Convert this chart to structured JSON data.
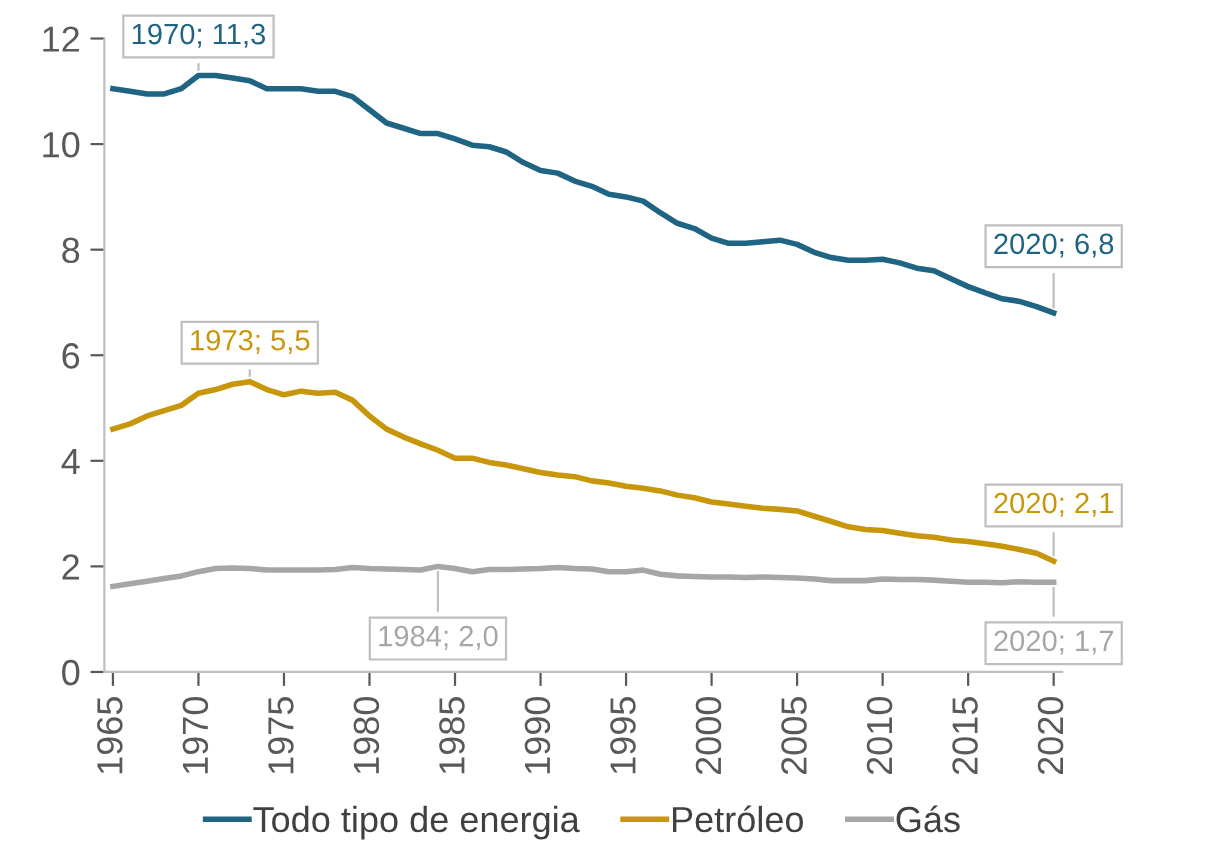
{
  "chart_data": {
    "type": "line",
    "x": [
      1965,
      1966,
      1967,
      1968,
      1969,
      1970,
      1971,
      1972,
      1973,
      1974,
      1975,
      1976,
      1977,
      1978,
      1979,
      1980,
      1981,
      1982,
      1983,
      1984,
      1985,
      1986,
      1987,
      1988,
      1989,
      1990,
      1991,
      1992,
      1993,
      1994,
      1995,
      1996,
      1997,
      1998,
      1999,
      2000,
      2001,
      2002,
      2003,
      2004,
      2005,
      2006,
      2007,
      2008,
      2009,
      2010,
      2011,
      2012,
      2013,
      2014,
      2015,
      2016,
      2017,
      2018,
      2019,
      2020
    ],
    "series": [
      {
        "name": "Todo tipo de energia",
        "color": "#1f6482",
        "values": [
          11.05,
          11.0,
          10.95,
          10.95,
          11.05,
          11.3,
          11.3,
          11.25,
          11.2,
          11.05,
          11.05,
          11.05,
          11.0,
          11.0,
          10.9,
          10.65,
          10.4,
          10.3,
          10.2,
          10.2,
          10.1,
          9.98,
          9.95,
          9.85,
          9.65,
          9.5,
          9.45,
          9.3,
          9.2,
          9.05,
          9.0,
          8.92,
          8.7,
          8.5,
          8.4,
          8.22,
          8.12,
          8.12,
          8.15,
          8.18,
          8.1,
          7.95,
          7.85,
          7.8,
          7.8,
          7.82,
          7.75,
          7.65,
          7.6,
          7.45,
          7.3,
          7.18,
          7.07,
          7.02,
          6.92,
          6.8
        ]
      },
      {
        "name": "Petróleo",
        "color": "#c8960a",
        "values": [
          4.6,
          4.7,
          4.85,
          4.95,
          5.05,
          5.28,
          5.35,
          5.45,
          5.5,
          5.35,
          5.25,
          5.32,
          5.28,
          5.3,
          5.15,
          4.85,
          4.6,
          4.45,
          4.32,
          4.2,
          4.05,
          4.05,
          3.97,
          3.92,
          3.85,
          3.78,
          3.73,
          3.7,
          3.62,
          3.58,
          3.52,
          3.48,
          3.43,
          3.35,
          3.3,
          3.22,
          3.18,
          3.14,
          3.1,
          3.08,
          3.05,
          2.95,
          2.85,
          2.75,
          2.7,
          2.68,
          2.63,
          2.58,
          2.55,
          2.5,
          2.47,
          2.43,
          2.38,
          2.32,
          2.25,
          2.1
        ]
      },
      {
        "name": "Gás",
        "color": "#a6a6a6",
        "values": [
          1.62,
          1.67,
          1.72,
          1.77,
          1.82,
          1.9,
          1.96,
          1.97,
          1.96,
          1.93,
          1.93,
          1.93,
          1.93,
          1.94,
          1.98,
          1.96,
          1.95,
          1.94,
          1.93,
          2.0,
          1.96,
          1.9,
          1.94,
          1.94,
          1.95,
          1.96,
          1.98,
          1.96,
          1.95,
          1.9,
          1.9,
          1.93,
          1.85,
          1.82,
          1.81,
          1.8,
          1.8,
          1.79,
          1.8,
          1.79,
          1.78,
          1.76,
          1.73,
          1.73,
          1.73,
          1.76,
          1.75,
          1.75,
          1.74,
          1.72,
          1.7,
          1.7,
          1.69,
          1.71,
          1.7,
          1.7
        ]
      }
    ],
    "annotations": [
      {
        "text": "1970; 11,3",
        "x": 1970,
        "y": 11.3
      },
      {
        "text": "1973; 5,5",
        "x": 1973,
        "y": 5.5
      },
      {
        "text": "1984; 2,0",
        "x": 1984,
        "y": 2.0
      },
      {
        "text": "2020; 6,8",
        "x": 2020,
        "y": 6.8
      },
      {
        "text": "2020; 2,1",
        "x": 2020,
        "y": 2.1
      },
      {
        "text": "2020; 1,7",
        "x": 2020,
        "y": 1.7
      }
    ],
    "xlim": [
      1964.5,
      2020.5
    ],
    "xticks": [
      1965,
      1970,
      1975,
      1980,
      1985,
      1990,
      1995,
      2000,
      2005,
      2010,
      2015,
      2020
    ],
    "ylim": [
      0,
      12
    ],
    "yticks": [
      0,
      2,
      4,
      6,
      8,
      10,
      12
    ],
    "grid": false,
    "legend": "bottom",
    "marker": "none",
    "line_style": "solid"
  }
}
